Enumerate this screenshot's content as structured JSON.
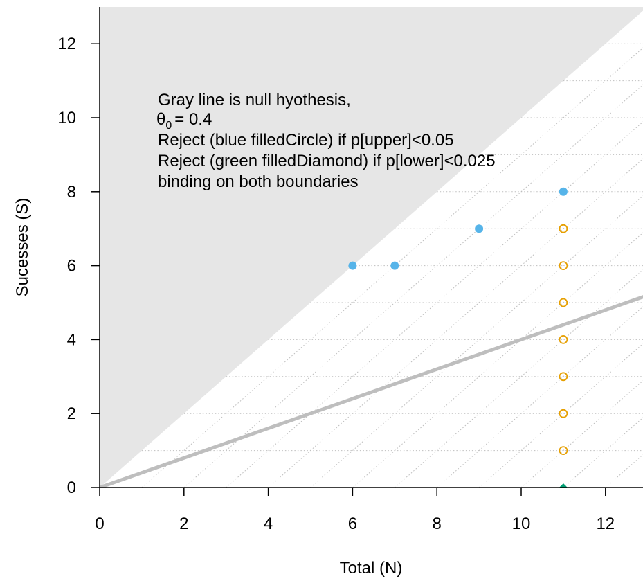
{
  "chart_data": {
    "type": "scatter",
    "xlabel": "Total (N)",
    "ylabel": "Sucesses (S)",
    "xlim": [
      0,
      12.9
    ],
    "ylim": [
      0,
      13
    ],
    "x_ticks": [
      0,
      2,
      4,
      6,
      8,
      10,
      12
    ],
    "y_ticks": [
      0,
      2,
      4,
      6,
      8,
      10,
      12
    ],
    "annotation": {
      "line1": "Gray line is null hyothesis,",
      "theta_symbol": "θ",
      "theta_subscript": "0",
      "theta_value": "= 0.4",
      "line3": "Reject (blue filledCircle) if p[upper]<0.05",
      "line4": "Reject (green filledDiamond) if p[lower]<0.025",
      "line5": "binding on both boundaries"
    },
    "null_slope": 0.4,
    "series": [
      {
        "marker": "filled-circle",
        "color": "#56B4E9",
        "points": [
          [
            6,
            6
          ],
          [
            7,
            6
          ],
          [
            9,
            7
          ],
          [
            11,
            8
          ]
        ]
      },
      {
        "marker": "open-circle",
        "color": "#E69F00",
        "points": [
          [
            11,
            1
          ],
          [
            11,
            2
          ],
          [
            11,
            3
          ],
          [
            11,
            4
          ],
          [
            11,
            5
          ],
          [
            11,
            6
          ],
          [
            11,
            7
          ]
        ]
      },
      {
        "marker": "filled-diamond",
        "color": "#009E73",
        "points": [
          [
            11,
            0
          ]
        ]
      }
    ],
    "colors": {
      "infeasible_region": "#E6E6E6",
      "null_line": "#BEBEBE",
      "grid": "#BEBEBE"
    }
  }
}
